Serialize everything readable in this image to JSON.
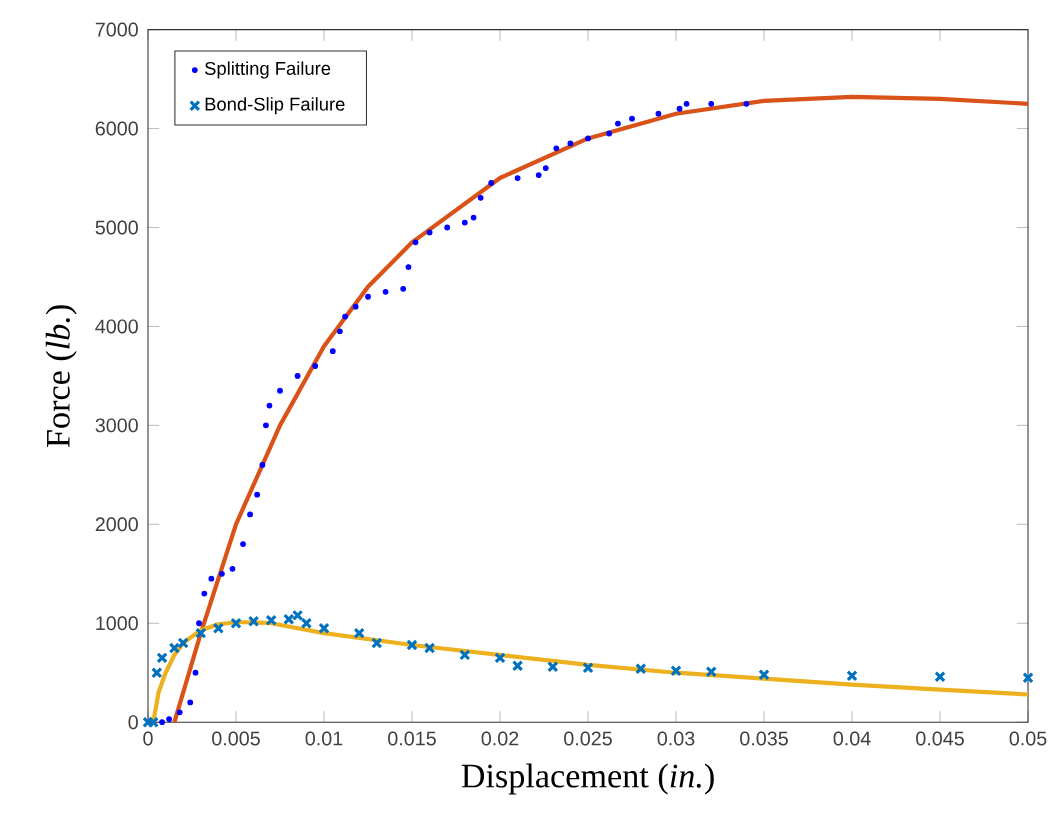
{
  "chart_data": {
    "type": "scatter",
    "xlabel": "Displacement (*in.*)",
    "ylabel": "Force (*lb.*)",
    "xlim": [
      0,
      0.05
    ],
    "ylim": [
      0,
      7000
    ],
    "xticks": [
      0,
      0.005,
      0.01,
      0.015,
      0.02,
      0.025,
      0.03,
      0.035,
      0.04,
      0.045,
      0.05
    ],
    "yticks": [
      0,
      1000,
      2000,
      3000,
      4000,
      5000,
      6000,
      7000
    ],
    "grid": false,
    "legend": "top left",
    "series": [
      {
        "name": "Splitting Failure",
        "marker": "circle",
        "color": "#0000ff",
        "x": [
          0.0008,
          0.0012,
          0.0018,
          0.0024,
          0.0027,
          0.0029,
          0.0032,
          0.0036,
          0.0042,
          0.0048,
          0.0054,
          0.0058,
          0.0062,
          0.0065,
          0.0067,
          0.0069,
          0.0075,
          0.0085,
          0.0095,
          0.0105,
          0.0109,
          0.0112,
          0.0118,
          0.0125,
          0.0135,
          0.0145,
          0.0148,
          0.0152,
          0.016,
          0.017,
          0.018,
          0.0185,
          0.0189,
          0.0195,
          0.021,
          0.0222,
          0.0226,
          0.0232,
          0.024,
          0.025,
          0.0262,
          0.0267,
          0.0275,
          0.029,
          0.0302,
          0.0306,
          0.032,
          0.034
        ],
        "values": [
          0,
          30,
          100,
          200,
          500,
          1000,
          1300,
          1450,
          1500,
          1550,
          1800,
          2100,
          2300,
          2600,
          3000,
          3200,
          3350,
          3500,
          3600,
          3750,
          3950,
          4100,
          4200,
          4300,
          4350,
          4380,
          4600,
          4850,
          4950,
          5000,
          5050,
          5100,
          5300,
          5450,
          5500,
          5530,
          5600,
          5800,
          5850,
          5900,
          5950,
          6050,
          6100,
          6150,
          6200,
          6250,
          6250,
          6250
        ]
      },
      {
        "name": "Bond-Slip Failure",
        "marker": "cross",
        "color": "#0072bd",
        "x": [
          0,
          0.0003,
          0.0005,
          0.0008,
          0.0015,
          0.002,
          0.003,
          0.004,
          0.005,
          0.006,
          0.007,
          0.008,
          0.0085,
          0.009,
          0.01,
          0.012,
          0.013,
          0.015,
          0.016,
          0.018,
          0.02,
          0.021,
          0.023,
          0.025,
          0.028,
          0.03,
          0.032,
          0.035,
          0.04,
          0.045,
          0.05
        ],
        "values": [
          0,
          0,
          500,
          650,
          750,
          800,
          900,
          950,
          1000,
          1020,
          1030,
          1040,
          1080,
          1000,
          950,
          900,
          800,
          780,
          750,
          680,
          650,
          570,
          560,
          550,
          540,
          520,
          510,
          480,
          470,
          460,
          450
        ]
      },
      {
        "type": "line",
        "marker": "none",
        "color": "#d95319",
        "x": [
          0.0015,
          0.003,
          0.005,
          0.0075,
          0.01,
          0.0125,
          0.015,
          0.02,
          0.025,
          0.03,
          0.035,
          0.04,
          0.045,
          0.05
        ],
        "values": [
          0,
          900,
          2000,
          3000,
          3800,
          4400,
          4850,
          5500,
          5900,
          6150,
          6280,
          6320,
          6300,
          6250
        ]
      },
      {
        "type": "line",
        "marker": "none",
        "color": "#edb120",
        "x": [
          0.0003,
          0.0006,
          0.001,
          0.0015,
          0.002,
          0.003,
          0.004,
          0.005,
          0.006,
          0.007,
          0.01,
          0.015,
          0.02,
          0.025,
          0.03,
          0.035,
          0.04,
          0.045,
          0.05
        ],
        "values": [
          0,
          300,
          500,
          680,
          800,
          930,
          990,
          1010,
          1010,
          1000,
          900,
          780,
          680,
          580,
          500,
          440,
          380,
          330,
          280
        ]
      }
    ]
  }
}
